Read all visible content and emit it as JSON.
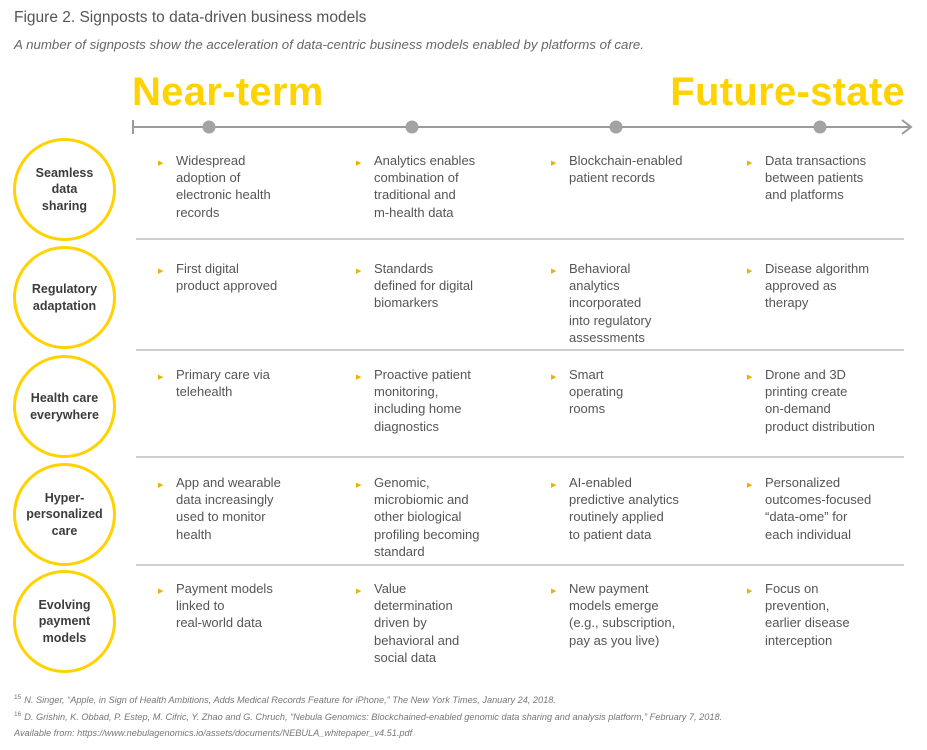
{
  "figure": {
    "title": "Figure 2. Signposts to data-driven business models",
    "subtitle": "A number of signposts show the acceleration of data-centric business models enabled by platforms of care."
  },
  "timeline": {
    "start_label": "Near-term",
    "end_label": "Future-state"
  },
  "colors": {
    "accent": "#ffd200",
    "line": "#9b9b9b",
    "marker": "#e8b400"
  },
  "rows": [
    {
      "label": "Seamless\ndata\nsharing",
      "cells": [
        "Widespread\nadoption of\nelectronic health\nrecords",
        "Analytics enables\ncombination of\ntraditional and\nm-health data",
        "Blockchain-enabled\npatient records",
        "Data transactions\nbetween patients\nand platforms"
      ]
    },
    {
      "label": "Regulatory\nadaptation",
      "cells": [
        "First digital\nproduct approved",
        "Standards\ndefined for digital\nbiomarkers",
        "Behavioral\nanalytics\nincorporated\ninto regulatory\nassessments",
        "Disease algorithm\napproved as\ntherapy"
      ]
    },
    {
      "label": "Health care\neverywhere",
      "cells": [
        "Primary care via\ntelehealth",
        "Proactive patient\nmonitoring,\nincluding home\ndiagnostics",
        "Smart\noperating\nrooms",
        "Drone and 3D\nprinting create\non-demand\nproduct distribution"
      ]
    },
    {
      "label": "Hyper-\npersonalized\ncare",
      "cells": [
        "App and wearable\ndata increasingly\nused to monitor\nhealth",
        "Genomic,\nmicrobiomic and\nother biological\nprofiling becoming\nstandard",
        "AI-enabled\npredictive analytics\nroutinely applied\nto patient data",
        "Personalized\noutcomes-focused\n“data-ome” for\neach individual"
      ]
    },
    {
      "label": "Evolving\npayment\nmodels",
      "cells": [
        "Payment models\nlinked to\nreal-world data",
        "Value\ndetermination\ndriven by\nbehavioral and\nsocial data",
        "New payment\nmodels emerge\n(e.g., subscription,\npay as you live)",
        "Focus on\nprevention,\nearlier disease\ninterception"
      ]
    }
  ],
  "footnotes": [
    {
      "num": "15",
      "text": "N. Singer, “Apple, in Sign of Health Ambitions, Adds Medical Records Feature for iPhone,” The New York Times, January 24, 2018."
    },
    {
      "num": "16",
      "text": "D. Grishin, K. Obbad, P. Estep, M. Cifric, Y. Zhao and G. Chruch, “Nebula Genomics: Blockchained-enabled genomic data sharing and analysis platform,” February 7, 2018."
    },
    {
      "num": "",
      "text": "Available from: https://www.nebulagenomics.io/assets/documents/NEBULA_whitepaper_v4.51.pdf"
    }
  ]
}
